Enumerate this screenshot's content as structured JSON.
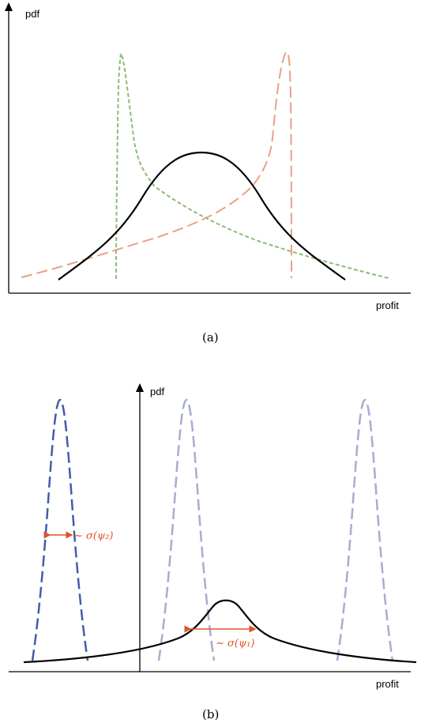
{
  "panel_a": {
    "y_label": "pdf",
    "x_label": "profit",
    "caption": "(a)",
    "colors": {
      "left_skewed": "#e8a184",
      "right_skewed": "#8fbb74",
      "symmetric": "#000000"
    }
  },
  "panel_b": {
    "y_label": "pdf",
    "x_label": "profit",
    "caption": "(b)",
    "annotation_psi2": "~ σ(ψ₂)",
    "annotation_psi1": "~ σ(ψ₁)",
    "colors": {
      "dark_peak": "#3f5ea8",
      "light_peak": "#a6acd4",
      "wide": "#000000",
      "annotation": "#e0532a"
    }
  }
}
